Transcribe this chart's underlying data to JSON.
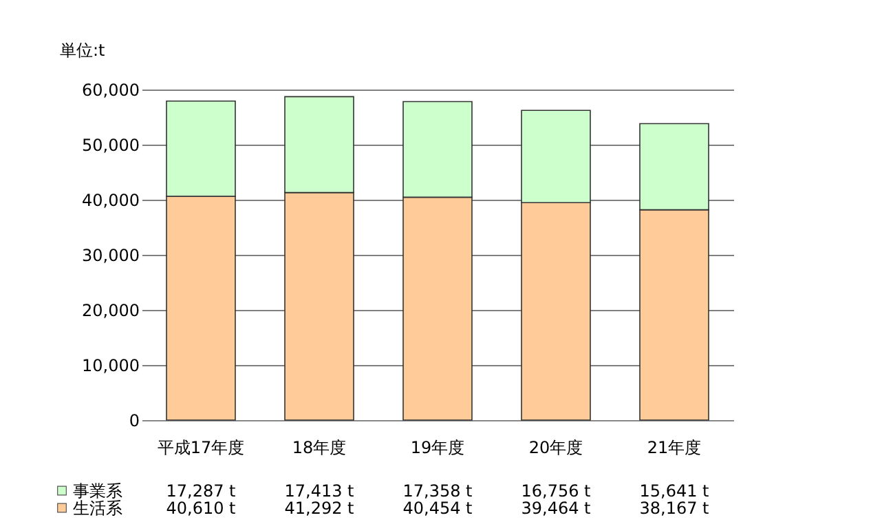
{
  "chart_data": {
    "type": "bar",
    "stacked": true,
    "ylabel": "単位:t",
    "categories": [
      "平成17年度",
      "18年度",
      "19年度",
      "20年度",
      "21年度"
    ],
    "series": [
      {
        "name": "生活系",
        "color": "#ffcc99",
        "values": [
          40610,
          41292,
          40454,
          39464,
          38167
        ],
        "value_labels": [
          "40,610 t",
          "41,292 t",
          "40,454 t",
          "39,464 t",
          "38,167 t"
        ]
      },
      {
        "name": "事業系",
        "color": "#ccffcc",
        "values": [
          17287,
          17413,
          17358,
          16756,
          15641
        ],
        "value_labels": [
          "17,287 t",
          "17,413 t",
          "17,358 t",
          "16,756 t",
          "15,641 t"
        ]
      }
    ],
    "ylim": [
      0,
      60000
    ],
    "yticks": [
      0,
      {
        "value": 10000,
        "label": "10,000"
      },
      {
        "value": 20000,
        "label": "20,000"
      },
      {
        "value": 30000,
        "label": "30,000"
      },
      {
        "value": 40000,
        "label": "40,000"
      },
      {
        "value": 50000,
        "label": "50,000"
      },
      {
        "value": 60000,
        "label": "60,000"
      }
    ],
    "grid": "y",
    "legend": "bottom left"
  }
}
